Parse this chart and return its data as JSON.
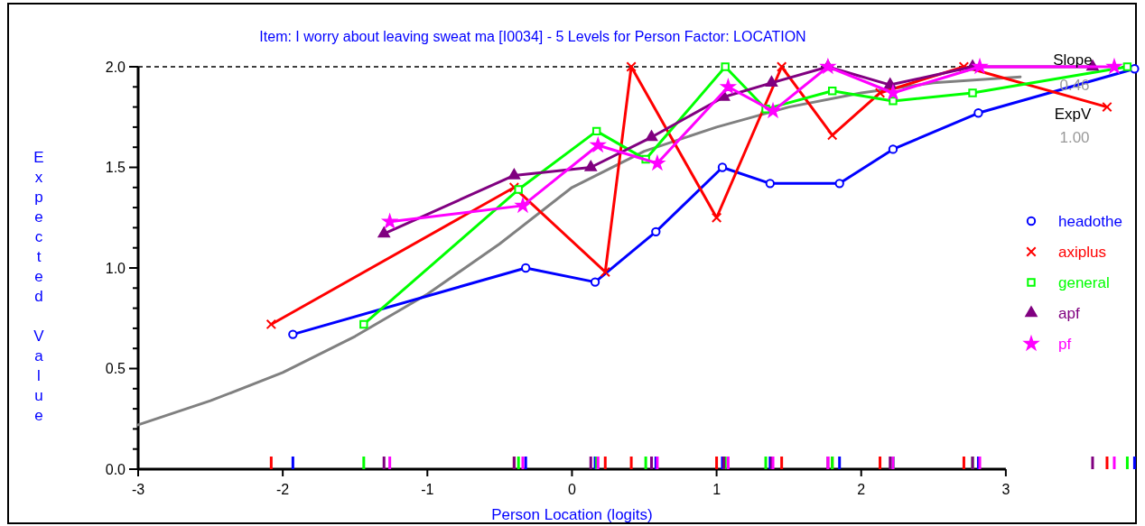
{
  "chart_data": {
    "type": "line",
    "title": "Item: I worry about leaving sweat ma [I0034] - 5 Levels for Person Factor: LOCATION",
    "xlabel": "Person Location (logits)",
    "ylabel": "Expected Value",
    "xlim": [
      -3,
      3.9
    ],
    "xticks": [
      -3,
      -2,
      -1,
      0,
      1,
      2,
      3
    ],
    "ylim": [
      0,
      2
    ],
    "yticks": [
      {
        "value": 0,
        "label": "0.0"
      },
      {
        "value": 0.5,
        "label": "0.5"
      },
      {
        "value": 1,
        "label": "1.0"
      },
      {
        "value": 1.5,
        "label": "1.5"
      },
      {
        "value": 2,
        "label": "2.0"
      }
    ],
    "grid": false,
    "legend": "right",
    "annotations": [
      "Slope",
      "0.46",
      "ExpV",
      "1.00"
    ],
    "ref_lines": [
      {
        "axis": "y",
        "value": 2,
        "color": "#000000",
        "line_style": "dashed"
      }
    ],
    "series": [
      {
        "color": "#808080",
        "marker": "none",
        "x": [
          -3,
          -2.5,
          -2,
          -1.5,
          -1,
          -0.5,
          0,
          0.5,
          1,
          1.5,
          2,
          2.5,
          3.1
        ],
        "values": [
          0.22,
          0.34,
          0.48,
          0.66,
          0.87,
          1.12,
          1.4,
          1.58,
          1.7,
          1.8,
          1.87,
          1.92,
          1.95
        ]
      },
      {
        "name": "headothe",
        "color": "#0000ff",
        "marker": "circle",
        "x": [
          -1.93,
          -0.32,
          0.16,
          0.58,
          1.04,
          1.37,
          1.85,
          2.22,
          2.81,
          3.89
        ],
        "values": [
          0.67,
          1.0,
          0.93,
          1.18,
          1.5,
          1.42,
          1.42,
          1.59,
          1.77,
          1.99
        ]
      },
      {
        "name": "axiplus",
        "color": "#ff0000",
        "marker": "cross",
        "x": [
          -2.08,
          -0.4,
          0.23,
          0.41,
          1.0,
          1.45,
          1.8,
          2.13,
          2.71,
          3.7
        ],
        "values": [
          0.72,
          1.4,
          0.98,
          2.0,
          1.25,
          2.0,
          1.66,
          1.87,
          2.0,
          1.8
        ]
      },
      {
        "name": "general",
        "color": "#00ff00",
        "marker": "square",
        "x": [
          -1.44,
          -0.37,
          0.17,
          0.51,
          1.06,
          1.34,
          1.8,
          2.22,
          2.77,
          3.84
        ],
        "values": [
          0.72,
          1.39,
          1.68,
          1.54,
          2.0,
          1.79,
          1.88,
          1.83,
          1.87,
          2.0
        ]
      },
      {
        "name": "apf",
        "color": "#800080",
        "marker": "triangle",
        "x": [
          -1.3,
          -0.4,
          0.13,
          0.55,
          1.05,
          1.38,
          1.77,
          2.2,
          2.77,
          3.6
        ],
        "values": [
          1.17,
          1.46,
          1.5,
          1.65,
          1.85,
          1.92,
          2.0,
          1.91,
          2.0,
          2.0
        ]
      },
      {
        "name": "pf",
        "color": "#ff00ff",
        "marker": "star",
        "x": [
          -1.26,
          -0.34,
          0.18,
          0.59,
          1.08,
          1.39,
          1.77,
          2.22,
          2.82,
          3.75
        ],
        "values": [
          1.23,
          1.31,
          1.61,
          1.52,
          1.9,
          1.78,
          2.0,
          1.87,
          2.0,
          2.0
        ]
      }
    ]
  }
}
